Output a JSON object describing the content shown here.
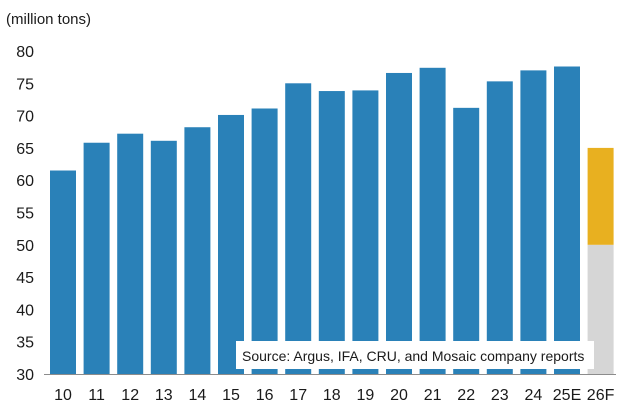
{
  "chart_data": {
    "type": "bar",
    "unit_label": "(million tons)",
    "categories": [
      "10",
      "11",
      "12",
      "13",
      "14",
      "15",
      "16",
      "17",
      "18",
      "19",
      "20",
      "21",
      "22",
      "23",
      "24",
      "25E",
      "26F"
    ],
    "values": [
      61.5,
      65.8,
      67.2,
      66.1,
      68.2,
      70.1,
      71.1,
      75.0,
      73.8,
      73.9,
      76.6,
      77.4,
      71.2,
      75.3,
      77.0,
      77.6,
      null
    ],
    "forecast_range": {
      "category": "26F",
      "low": 50,
      "high": 65
    },
    "ylim": [
      30,
      80
    ],
    "yticks": [
      30,
      35,
      40,
      45,
      50,
      55,
      60,
      65,
      70,
      75,
      80
    ],
    "grid": false,
    "legend": "none",
    "annotation": "Source: Argus, IFA, CRU, and Mosaic company reports",
    "colors": {
      "bar": "#2a81b8",
      "forecast_range": "#e8b020",
      "forecast_base": "#d6d6d6",
      "axis": "#8c8c8c",
      "annotation_bg": "#ffffff"
    }
  }
}
